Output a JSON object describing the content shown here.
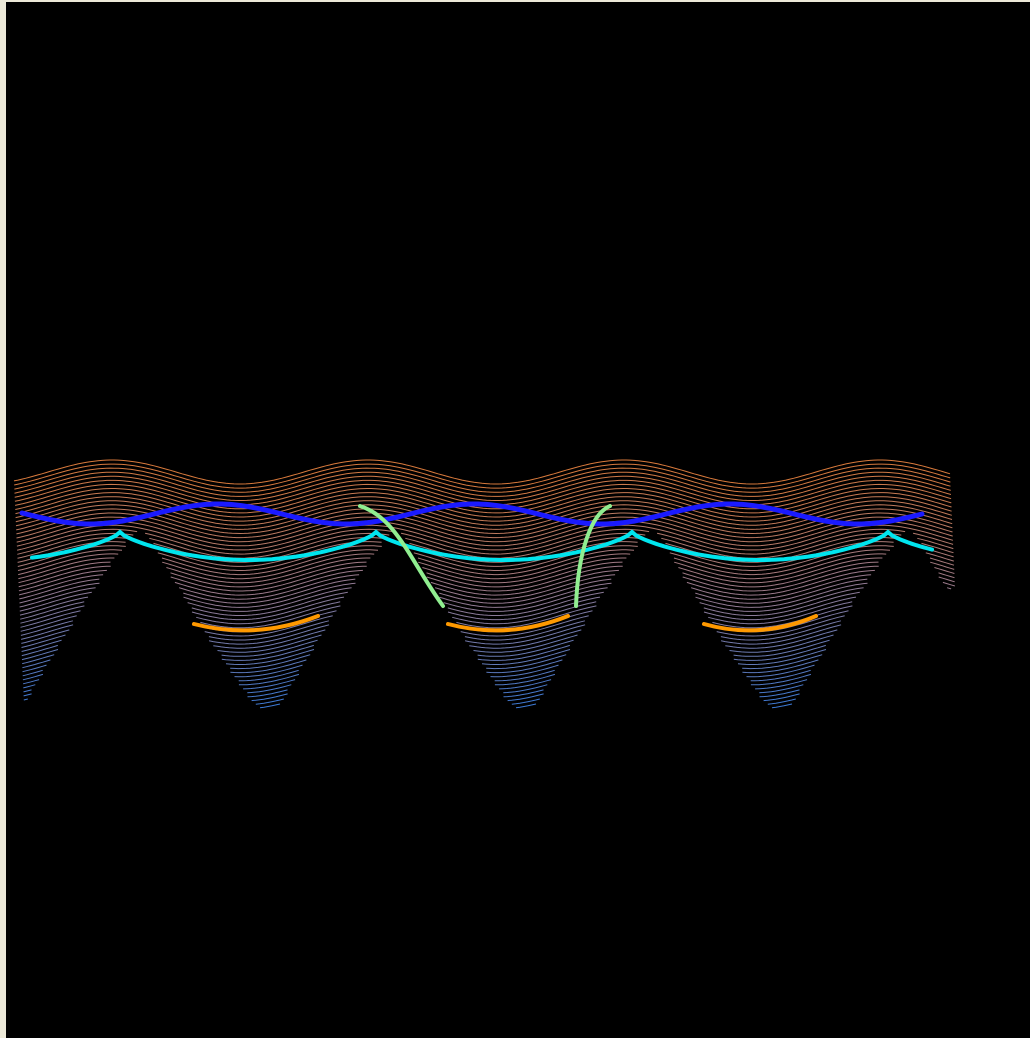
{
  "view": {
    "background": "#000000",
    "frame_color": "#ece9d8"
  },
  "surface": {
    "contour_palette": {
      "top": "#d97a3c",
      "middle": "#9a7a8c",
      "bottom": "#3d7ad6"
    }
  },
  "overlays": {
    "ridge_line_color": "#1a1aff",
    "shoulder_line_color": "#00e5ee",
    "trough_line_color": "#ff9900",
    "cross_curve_color": "#90ee90"
  }
}
